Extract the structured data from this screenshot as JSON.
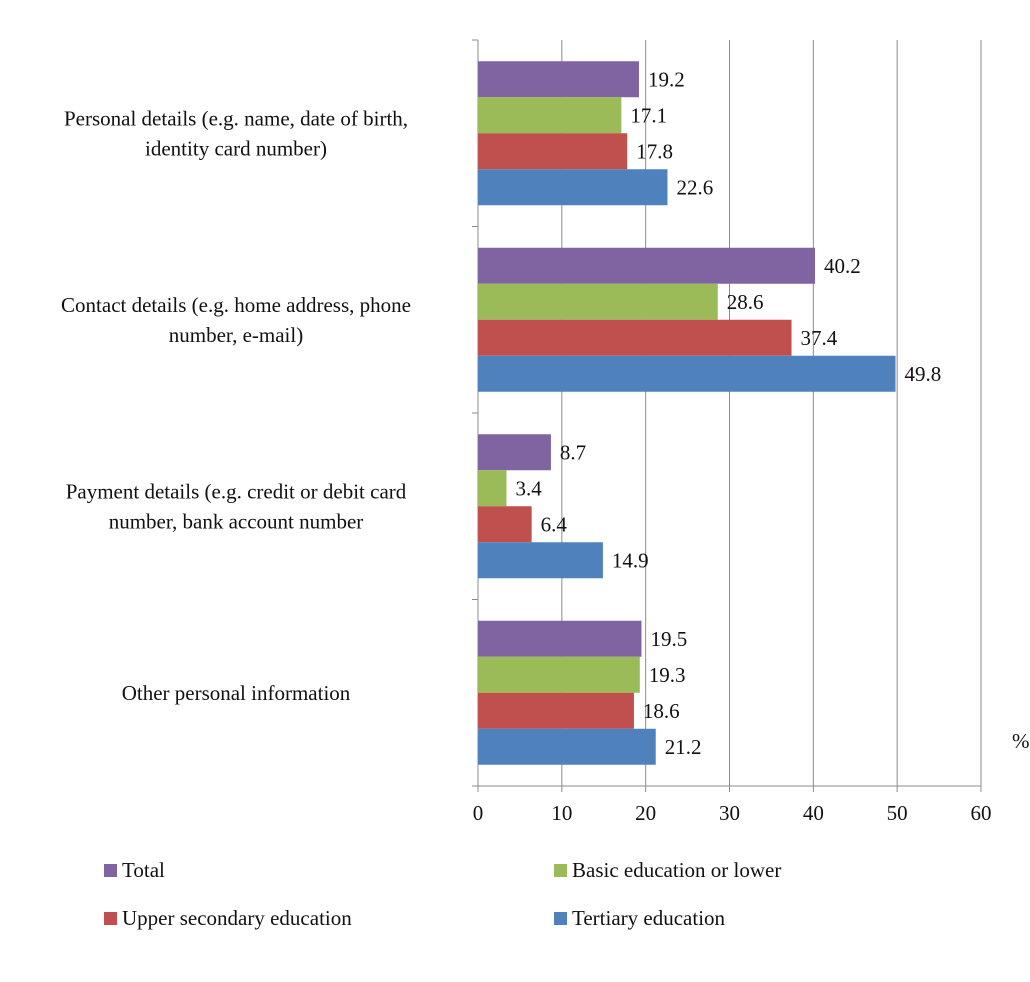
{
  "chart_data": {
    "type": "bar",
    "orientation": "horizontal",
    "categories": [
      [
        "Personal details (e.g. name, date of birth,",
        "identity card number)"
      ],
      [
        "Contact details (e.g. home address, phone",
        "number, e-mail)"
      ],
      [
        "Payment details (e.g. credit or debit card",
        "number, bank account number"
      ],
      [
        "Other personal information"
      ]
    ],
    "series": [
      {
        "name": "Total",
        "color": "#8064A2",
        "values": [
          19.2,
          40.2,
          8.7,
          19.5
        ],
        "labels": [
          "19.2",
          "40.2",
          "8.7",
          "19.5"
        ]
      },
      {
        "name": "Basic education or lower",
        "color": "#9BBB59",
        "values": [
          17.1,
          28.6,
          3.4,
          19.3
        ],
        "labels": [
          "17.1",
          "28.6",
          "3.4",
          "19.3"
        ]
      },
      {
        "name": "Upper secondary education",
        "color": "#C0504D",
        "values": [
          17.8,
          37.4,
          6.4,
          18.6
        ],
        "labels": [
          "17.8",
          "37.4",
          "6.4",
          "18.6"
        ]
      },
      {
        "name": "Tertiary education",
        "color": "#4F81BD",
        "values": [
          22.6,
          49.8,
          14.9,
          21.2
        ],
        "labels": [
          "22.6",
          "49.8",
          "14.9",
          "21.2"
        ]
      }
    ],
    "xlim": [
      0,
      60
    ],
    "xticks": [
      "0",
      "10",
      "20",
      "30",
      "40",
      "50",
      "60"
    ],
    "unit": "%",
    "grid": "vertical",
    "legend_position": "bottom",
    "legend_order": [
      "Total",
      "Basic education or lower",
      "Upper secondary education",
      "Tertiary education"
    ]
  }
}
